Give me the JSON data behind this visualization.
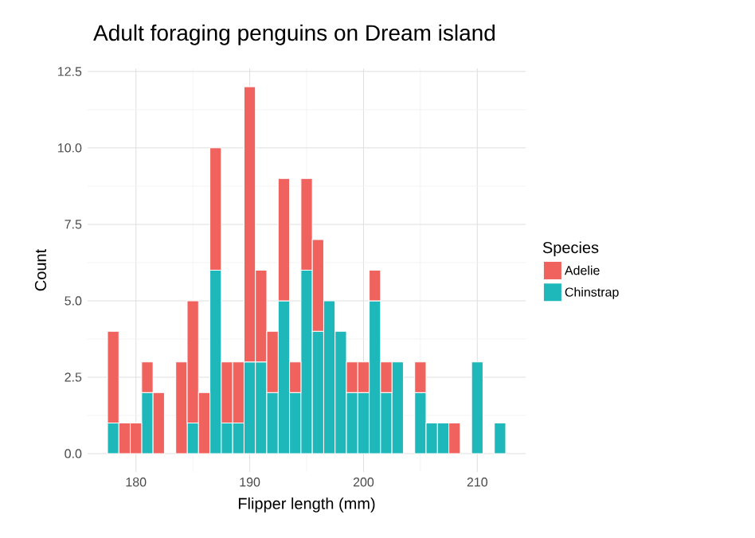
{
  "chart_data": {
    "type": "bar",
    "title": "Adult foraging penguins on Dream island",
    "xlabel": "Flipper length (mm)",
    "ylabel": "Count",
    "legend_title": "Species",
    "x": [
      178,
      179,
      180,
      181,
      182,
      183,
      184,
      185,
      186,
      187,
      188,
      189,
      190,
      191,
      192,
      193,
      194,
      195,
      196,
      197,
      198,
      199,
      200,
      201,
      202,
      203,
      204,
      205,
      206,
      207,
      208,
      209,
      210,
      211,
      212
    ],
    "stacked": true,
    "series": [
      {
        "name": "Chinstrap",
        "color": "#1fb8ba",
        "values": [
          1,
          0,
          0,
          2,
          0,
          0,
          0,
          1,
          0,
          6,
          1,
          1,
          3,
          3,
          2,
          5,
          2,
          6,
          4,
          5,
          4,
          2,
          2,
          5,
          2,
          3,
          0,
          2,
          1,
          1,
          0,
          0,
          3,
          0,
          1
        ]
      },
      {
        "name": "Adelie",
        "color": "#f0625d",
        "values": [
          3,
          1,
          1,
          1,
          2,
          0,
          3,
          4,
          2,
          4,
          2,
          2,
          9,
          3,
          2,
          4,
          1,
          3,
          3,
          0,
          0,
          1,
          1,
          1,
          1,
          0,
          0,
          1,
          0,
          0,
          1,
          0,
          0,
          0,
          0
        ]
      }
    ],
    "xlim": [
      175.75,
      214.25
    ],
    "ylim": [
      -0.6,
      12.6
    ],
    "xticks": [
      180,
      190,
      200,
      210
    ],
    "yticks": [
      {
        "value": 0,
        "label": "0.0"
      },
      {
        "value": 2.5,
        "label": "2.5"
      },
      {
        "value": 5,
        "label": "5.0"
      },
      {
        "value": 7.5,
        "label": "7.5"
      },
      {
        "value": 10,
        "label": "10.0"
      },
      {
        "value": 12.5,
        "label": "12.5"
      }
    ],
    "grid": true,
    "legend": "right"
  }
}
